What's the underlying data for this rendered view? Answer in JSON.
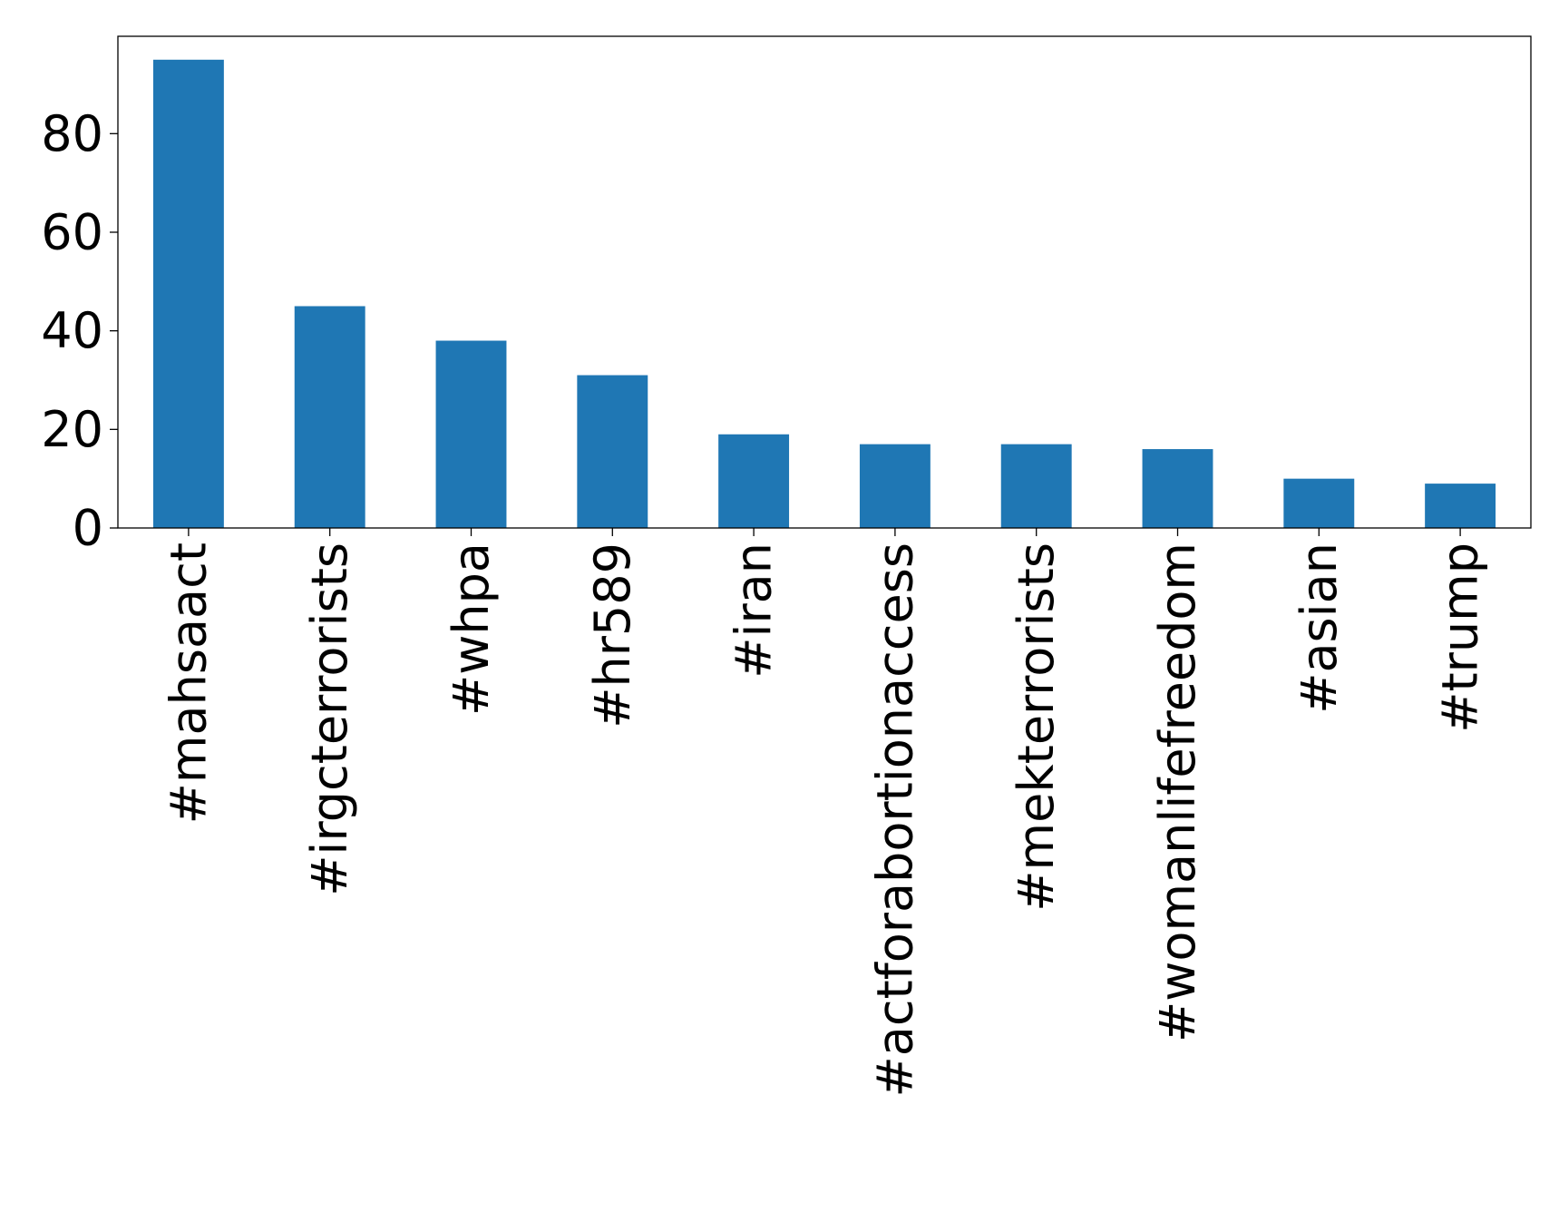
{
  "chart_data": {
    "type": "bar",
    "categories": [
      "#mahsaact",
      "#irgcterrorists",
      "#whpa",
      "#hr589",
      "#iran",
      "#actforabortionaccess",
      "#mekterrorists",
      "#womanlifefreedom",
      "#asian",
      "#trump"
    ],
    "values": [
      95,
      45,
      38,
      31,
      19,
      17,
      17,
      16,
      10,
      9
    ],
    "title": "",
    "xlabel": "",
    "ylabel": "",
    "ylim": [
      0,
      99.75
    ],
    "yticks": [
      0,
      20,
      40,
      60,
      80
    ],
    "yticklabels": [
      "0",
      "20",
      "40",
      "60",
      "80"
    ],
    "grid": false,
    "bar_color": "#1f77b4",
    "xtick_rotation": "vertical"
  }
}
